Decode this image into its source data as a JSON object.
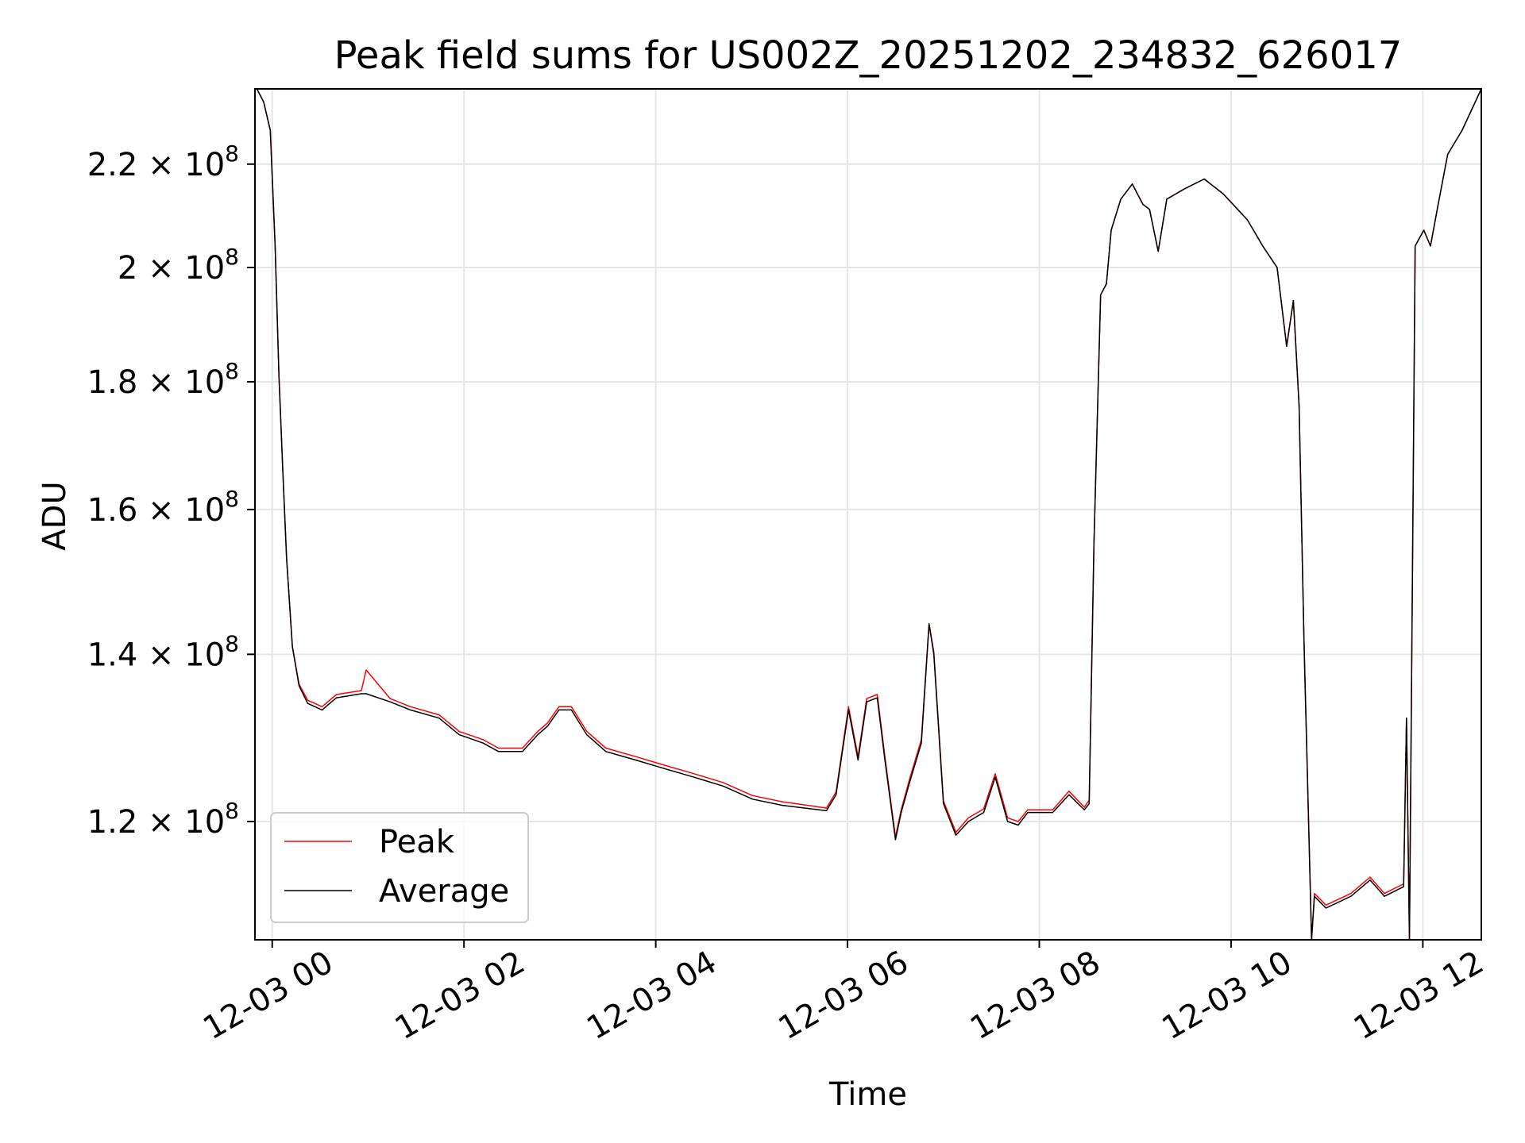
{
  "chart_data": {
    "type": "line",
    "title": "Peak field sums for US002Z_20251202_234832_626017",
    "xlabel": "Time",
    "ylabel": "ADU",
    "x_units": "hours since 12-03 00:00",
    "xlim": [
      -0.18,
      12.61
    ],
    "ylim": [
      107600000.0,
      235800000.0
    ],
    "yscale": "log",
    "grid": true,
    "legend_placement": "lower-left",
    "x_ticks": [
      {
        "value": 0,
        "label": "12-03 00"
      },
      {
        "value": 2,
        "label": "12-03 02"
      },
      {
        "value": 4,
        "label": "12-03 04"
      },
      {
        "value": 6,
        "label": "12-03 06"
      },
      {
        "value": 8,
        "label": "12-03 08"
      },
      {
        "value": 10,
        "label": "12-03 10"
      },
      {
        "value": 12,
        "label": "12-03 12"
      }
    ],
    "y_ticks": [
      {
        "value": 120000000.0,
        "mantissa": "1.2",
        "base": "10",
        "exp": "8"
      },
      {
        "value": 140000000.0,
        "mantissa": "1.4",
        "base": "10",
        "exp": "8"
      },
      {
        "value": 160000000.0,
        "mantissa": "1.6",
        "base": "10",
        "exp": "8"
      },
      {
        "value": 180000000.0,
        "mantissa": "1.8",
        "base": "10",
        "exp": "8"
      },
      {
        "value": 200000000.0,
        "mantissa": "2",
        "base": "10",
        "exp": "8"
      },
      {
        "value": 220000000.0,
        "mantissa": "2.2",
        "base": "10",
        "exp": "8"
      }
    ],
    "x": [
      -0.16,
      -0.09,
      -0.02,
      0.03,
      0.07,
      0.11,
      0.15,
      0.21,
      0.28,
      0.37,
      0.52,
      0.67,
      0.93,
      0.98,
      1.23,
      1.44,
      1.74,
      1.95,
      2.2,
      2.36,
      2.61,
      2.77,
      2.87,
      2.99,
      3.12,
      3.28,
      3.48,
      3.79,
      4.09,
      4.4,
      4.7,
      5.01,
      5.32,
      5.78,
      5.88,
      6.01,
      6.11,
      6.2,
      6.31,
      6.39,
      6.5,
      6.56,
      6.65,
      6.77,
      6.85,
      6.9,
      7.0,
      7.13,
      7.26,
      7.42,
      7.54,
      7.67,
      7.78,
      7.88,
      8.14,
      8.31,
      8.47,
      8.52,
      8.57,
      8.64,
      8.7,
      8.75,
      8.85,
      8.97,
      9.08,
      9.15,
      9.24,
      9.33,
      9.51,
      9.72,
      9.92,
      10.02,
      10.17,
      10.33,
      10.48,
      10.58,
      10.65,
      10.71,
      10.76,
      10.84,
      10.87,
      10.99,
      11.25,
      11.45,
      11.6,
      11.8,
      11.83,
      11.86,
      11.92,
      12.01,
      12.08,
      12.16,
      12.26,
      12.41,
      12.61
    ],
    "series": [
      {
        "name": "Peak",
        "color": "#ff0000",
        "values": [
          235800000.0,
          233000000.0,
          227000000.0,
          204000000.0,
          181000000.0,
          166000000.0,
          153000000.0,
          141000000.0,
          136200000.0,
          134200000.0,
          133400000.0,
          134900000.0,
          135400000.0,
          138000000.0,
          134400000.0,
          133400000.0,
          132400000.0,
          130400000.0,
          129400000.0,
          128400000.0,
          128400000.0,
          130400000.0,
          131400000.0,
          133400000.0,
          133400000.0,
          130400000.0,
          128400000.0,
          127400000.0,
          126400000.0,
          125400000.0,
          124400000.0,
          122900000.0,
          122200000.0,
          121500000.0,
          123300000.0,
          133400000.0,
          127400000.0,
          134400000.0,
          134900000.0,
          127400000.0,
          118300000.0,
          121300000.0,
          124900000.0,
          129400000.0,
          144000000.0,
          140300000.0,
          122300000.0,
          118800000.0,
          120400000.0,
          121400000.0,
          125400000.0,
          120400000.0,
          120000000.0,
          121300000.0,
          121300000.0,
          123400000.0,
          121600000.0,
          122400000.0,
          155000000.0,
          195000000.0,
          197000000.0,
          207000000.0,
          213000000.0,
          216000000.0,
          212000000.0,
          211000000.0,
          203000000.0,
          213000000.0,
          215000000.0,
          217000000.0,
          214000000.0,
          212000000.0,
          209000000.0,
          204000000.0,
          200000000.0,
          186000000.0,
          194000000.0,
          176000000.0,
          142000000.0,
          107600000.0,
          112300000.0,
          111100000.0,
          112300000.0,
          114000000.0,
          112300000.0,
          113300000.0,
          132000000.0,
          107600000.0,
          204000000.0,
          207000000.0,
          204000000.0,
          212000000.0,
          222000000.0,
          227000000.0,
          235800000.0
        ]
      },
      {
        "name": "Average",
        "color": "#000000",
        "values": [
          235800000.0,
          233000000.0,
          227000000.0,
          204000000.0,
          181000000.0,
          166000000.0,
          153000000.0,
          141000000.0,
          136000000.0,
          133800000.0,
          133000000.0,
          134500000.0,
          135000000.0,
          135000000.0,
          134000000.0,
          133000000.0,
          132000000.0,
          130000000.0,
          129000000.0,
          128000000.0,
          128000000.0,
          130000000.0,
          131000000.0,
          133000000.0,
          133000000.0,
          130000000.0,
          128000000.0,
          127000000.0,
          126000000.0,
          125000000.0,
          124000000.0,
          122500000.0,
          121800000.0,
          121200000.0,
          123000000.0,
          133000000.0,
          127000000.0,
          134000000.0,
          134500000.0,
          127000000.0,
          118000000.0,
          121000000.0,
          124500000.0,
          129000000.0,
          144000000.0,
          140000000.0,
          122000000.0,
          118500000.0,
          120000000.0,
          121000000.0,
          125000000.0,
          120000000.0,
          119600000.0,
          121000000.0,
          121000000.0,
          123000000.0,
          121300000.0,
          122000000.0,
          155000000.0,
          195000000.0,
          197000000.0,
          207000000.0,
          213000000.0,
          216000000.0,
          212000000.0,
          211000000.0,
          203000000.0,
          213000000.0,
          215000000.0,
          217000000.0,
          214000000.0,
          212000000.0,
          209000000.0,
          204000000.0,
          200000000.0,
          186000000.0,
          194000000.0,
          176000000.0,
          142000000.0,
          107600000.0,
          112000000.0,
          110800000.0,
          112000000.0,
          113700000.0,
          112000000.0,
          113000000.0,
          132000000.0,
          107600000.0,
          204000000.0,
          207000000.0,
          204000000.0,
          212000000.0,
          222000000.0,
          227000000.0,
          235800000.0
        ]
      }
    ]
  }
}
